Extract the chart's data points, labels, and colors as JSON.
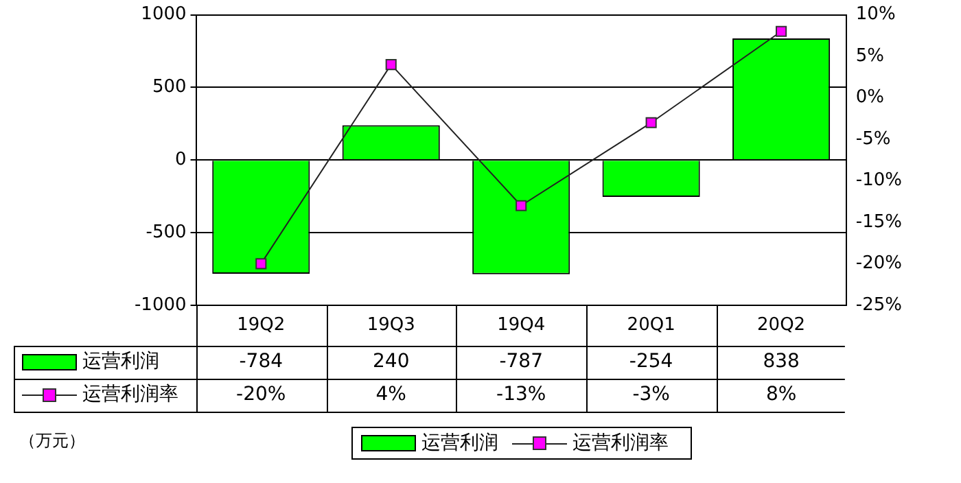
{
  "chart_data": {
    "type": "bar",
    "categories": [
      "19Q2",
      "19Q3",
      "19Q4",
      "20Q1",
      "20Q2"
    ],
    "series": [
      {
        "name": "运营利润",
        "color": "#00ff00",
        "values": [
          -784,
          240,
          -787,
          -254,
          838
        ],
        "value_labels": [
          "-784",
          "240",
          "-787",
          "-254",
          "838"
        ]
      },
      {
        "name": "运营利润率",
        "type": "line",
        "axis": "y2",
        "color": "#ff00ff",
        "values": [
          -20,
          4,
          -13,
          -3,
          8
        ],
        "value_labels": [
          "-20%",
          "4%",
          "-13%",
          "-3%",
          "8%"
        ]
      }
    ],
    "ylim": [
      -1000,
      1000
    ],
    "yticks": [
      -1000,
      -500,
      0,
      500,
      1000
    ],
    "y2lim": [
      -25,
      10
    ],
    "y2ticks": [
      {
        "value": -25,
        "label": "-25%"
      },
      {
        "value": -20,
        "label": "-20%"
      },
      {
        "value": -15,
        "label": "-15%"
      },
      {
        "value": -10,
        "label": "-10%"
      },
      {
        "value": -5,
        "label": "-5%"
      },
      {
        "value": 0,
        "label": "0%"
      },
      {
        "value": 5,
        "label": "5%"
      },
      {
        "value": 10,
        "label": "10%"
      }
    ],
    "grid": "y",
    "legend": "bottom",
    "marker": "square",
    "line_style": "solid",
    "annotations": [
      "（万元）"
    ]
  }
}
